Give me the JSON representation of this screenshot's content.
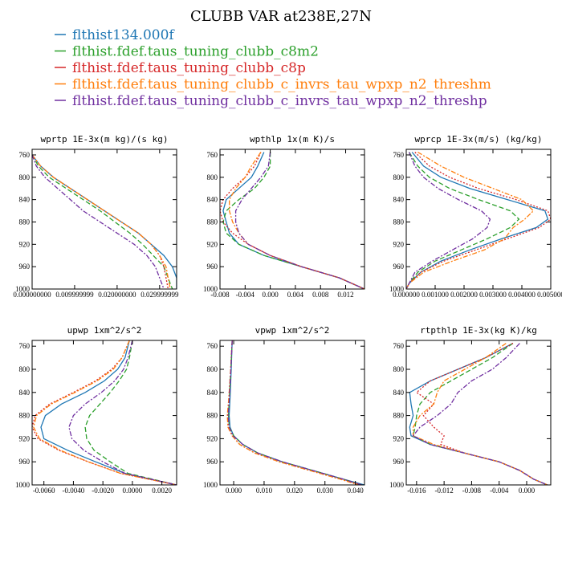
{
  "figure": {
    "title": "CLUBB VAR at238E,27N"
  },
  "chart_data": {
    "series_styles": [
      {
        "name": "flthist134.000f",
        "color": "#1f77b4",
        "dash": "solid"
      },
      {
        "name": "flthist.fdef.taus_tuning_clubb_c8m2",
        "color": "#2ca02c",
        "dash": "dashed"
      },
      {
        "name": "flthist.fdef.taus_tuning_clubb_c8p",
        "color": "#d62728",
        "dash": "dotted"
      },
      {
        "name": "flthist.fdef.taus_tuning_clubb_c_invrs_tau_wpxp_n2_threshm",
        "color": "#ff7f0e",
        "dash": "dashdot"
      },
      {
        "name": "flthist.fdef.taus_tuning_clubb_c_invrs_tau_wpxp_n2_threshp",
        "color": "#7030a0",
        "dash": "dashdot"
      }
    ],
    "panels": [
      {
        "type": "line",
        "title": "wprtp  1E-3x(m kg)/(s kg)",
        "xlim": [
          0.0,
          0.034
        ],
        "ylim": [
          750,
          1000
        ],
        "ylog": false,
        "y_inverted": true,
        "xticks": [
          0.0,
          0.01,
          0.02,
          0.03
        ],
        "xtick_labels": [
          "0.000000000",
          "0.009999999",
          "0.020000000",
          "0.029999999"
        ],
        "yticks": [
          760,
          800,
          840,
          880,
          920,
          960,
          1000
        ],
        "ytick_labels": [
          "760",
          "800",
          "840",
          "880",
          "920",
          "960",
          "1000"
        ],
        "y": [
          760,
          780,
          800,
          820,
          840,
          860,
          880,
          900,
          920,
          940,
          960,
          980,
          1000
        ],
        "series": [
          {
            "values": [
              0.0,
              0.002,
              0.005,
              0.009,
              0.013,
              0.017,
              0.021,
              0.025,
              0.028,
              0.031,
              0.033,
              0.034,
              0.034
            ]
          },
          {
            "values": [
              0.0,
              0.0015,
              0.004,
              0.008,
              0.012,
              0.016,
              0.0195,
              0.023,
              0.026,
              0.0285,
              0.031,
              0.032,
              0.033
            ]
          },
          {
            "values": [
              0.0,
              0.002,
              0.005,
              0.009,
              0.013,
              0.017,
              0.021,
              0.025,
              0.028,
              0.03,
              0.031,
              0.0315,
              0.032
            ]
          },
          {
            "values": [
              0.0,
              0.002,
              0.005,
              0.009,
              0.013,
              0.017,
              0.021,
              0.025,
              0.028,
              0.03,
              0.0315,
              0.032,
              0.0325
            ]
          },
          {
            "values": [
              0.0,
              0.001,
              0.003,
              0.006,
              0.009,
              0.012,
              0.016,
              0.02,
              0.024,
              0.027,
              0.029,
              0.03,
              0.031
            ]
          }
        ]
      },
      {
        "type": "line",
        "title": "wpthlp  1x(m K)/s",
        "xlim": [
          -0.008,
          0.015
        ],
        "ylim": [
          750,
          1000
        ],
        "ylog": false,
        "y_inverted": true,
        "xticks": [
          -0.008,
          -0.004,
          0.0,
          0.004,
          0.008,
          0.012
        ],
        "xtick_labels": [
          "-0.008",
          "-0.004",
          "0.000",
          "0.004",
          "0.008",
          "0.012"
        ],
        "yticks": [
          760,
          800,
          840,
          880,
          920,
          960,
          1000
        ],
        "ytick_labels": [
          "760",
          "800",
          "840",
          "880",
          "920",
          "960",
          "1000"
        ],
        "y": [
          755,
          780,
          800,
          820,
          840,
          860,
          880,
          900,
          920,
          940,
          960,
          980,
          1000
        ],
        "series": [
          {
            "values": [
              -0.001,
              -0.002,
              -0.003,
              -0.005,
              -0.007,
              -0.0075,
              -0.007,
              -0.0065,
              -0.005,
              -0.001,
              0.005,
              0.011,
              0.015
            ]
          },
          {
            "values": [
              0.0,
              0.0,
              -0.001,
              -0.0025,
              -0.005,
              -0.007,
              -0.0075,
              -0.007,
              -0.005,
              -0.001,
              0.005,
              0.011,
              0.015
            ]
          },
          {
            "values": [
              -0.0015,
              -0.0025,
              -0.004,
              -0.006,
              -0.0075,
              -0.008,
              -0.0075,
              -0.006,
              -0.0035,
              0.0,
              0.005,
              0.011,
              0.015
            ]
          },
          {
            "values": [
              -0.0015,
              -0.003,
              -0.004,
              -0.0055,
              -0.0065,
              -0.0065,
              -0.006,
              -0.005,
              -0.0035,
              0.0,
              0.005,
              0.011,
              0.015
            ]
          },
          {
            "values": [
              0.0,
              -0.0003,
              -0.0015,
              -0.003,
              -0.0045,
              -0.0055,
              -0.0055,
              -0.005,
              -0.0035,
              0.0,
              0.005,
              0.011,
              0.015
            ]
          }
        ]
      },
      {
        "type": "line",
        "title": "wprcp  1E-3x(m/s) (kg/kg)",
        "xlim": [
          0.0,
          0.005
        ],
        "ylim": [
          750,
          1000
        ],
        "ylog": false,
        "y_inverted": true,
        "xticks": [
          0.0,
          0.001,
          0.002,
          0.003,
          0.004,
          0.005
        ],
        "xtick_labels": [
          "0.000000",
          "0.001000",
          "0.002000",
          "0.003000",
          "0.004000",
          "0.005000"
        ],
        "yticks": [
          760,
          800,
          840,
          880,
          920,
          960,
          1000
        ],
        "ytick_labels": [
          "760",
          "800",
          "840",
          "880",
          "920",
          "960",
          "1000"
        ],
        "y": [
          755,
          780,
          800,
          820,
          840,
          860,
          875,
          890,
          910,
          930,
          950,
          970,
          990,
          1000
        ],
        "series": [
          {
            "values": [
              0.0002,
              0.0006,
              0.0012,
              0.0022,
              0.0035,
              0.0048,
              0.0049,
              0.0045,
              0.0033,
              0.0022,
              0.0012,
              0.0005,
              0.0001,
              0.0
            ]
          },
          {
            "values": [
              0.0001,
              0.0004,
              0.0008,
              0.0015,
              0.0025,
              0.0036,
              0.0039,
              0.0036,
              0.0028,
              0.0019,
              0.001,
              0.0004,
              0.0001,
              0.0
            ]
          },
          {
            "values": [
              0.0003,
              0.0008,
              0.0015,
              0.0025,
              0.0038,
              0.0049,
              0.005,
              0.0046,
              0.0035,
              0.0024,
              0.0013,
              0.0005,
              0.0001,
              0.0
            ]
          },
          {
            "values": [
              0.0004,
              0.0012,
              0.002,
              0.003,
              0.004,
              0.0044,
              0.0041,
              0.0037,
              0.0034,
              0.0027,
              0.0016,
              0.0006,
              0.0001,
              0.0
            ]
          },
          {
            "values": [
              0.0001,
              0.0003,
              0.0006,
              0.0011,
              0.0018,
              0.0026,
              0.0029,
              0.0028,
              0.0023,
              0.0016,
              0.0009,
              0.0003,
              0.0001,
              0.0
            ]
          }
        ]
      },
      {
        "type": "line",
        "title": "upwp  1xm^2/s^2",
        "xlim": [
          -0.0068,
          0.003
        ],
        "ylim": [
          750,
          1000
        ],
        "ylog": false,
        "y_inverted": true,
        "xticks": [
          -0.006,
          -0.004,
          -0.002,
          0.0,
          0.002
        ],
        "xtick_labels": [
          "-0.0060",
          "-0.0040",
          "-0.0020",
          "0.0000",
          "0.0020"
        ],
        "yticks": [
          760,
          800,
          840,
          880,
          920,
          960,
          1000
        ],
        "ytick_labels": [
          "760",
          "800",
          "840",
          "880",
          "920",
          "960",
          "1000"
        ],
        "y": [
          750,
          780,
          800,
          820,
          840,
          860,
          880,
          900,
          920,
          940,
          960,
          980,
          1000
        ],
        "series": [
          {
            "values": [
              -0.0002,
              -0.0005,
              -0.001,
              -0.0019,
              -0.0032,
              -0.0048,
              -0.0059,
              -0.0062,
              -0.006,
              -0.0044,
              -0.0025,
              -0.0005,
              0.003
            ]
          },
          {
            "values": [
              0.0,
              -0.0002,
              -0.0004,
              -0.0009,
              -0.0015,
              -0.0022,
              -0.0029,
              -0.0032,
              -0.0031,
              -0.0026,
              -0.0015,
              -0.0003,
              0.003
            ]
          },
          {
            "values": [
              -0.0002,
              -0.0007,
              -0.0014,
              -0.0025,
              -0.004,
              -0.0056,
              -0.0066,
              -0.0068,
              -0.0064,
              -0.005,
              -0.003,
              -0.0008,
              0.003
            ]
          },
          {
            "values": [
              -0.0002,
              -0.0007,
              -0.0013,
              -0.0024,
              -0.0039,
              -0.0055,
              -0.0065,
              -0.0067,
              -0.0063,
              -0.0049,
              -0.003,
              -0.0008,
              0.003
            ]
          },
          {
            "values": [
              0.0,
              -0.0003,
              -0.0006,
              -0.0012,
              -0.0021,
              -0.0032,
              -0.004,
              -0.0043,
              -0.0041,
              -0.0033,
              -0.002,
              -0.0005,
              0.003
            ]
          }
        ]
      },
      {
        "type": "line",
        "title": "vpwp  1xm^2/s^2",
        "xlim": [
          -0.0045,
          0.043
        ],
        "ylim": [
          750,
          1000
        ],
        "ylog": false,
        "y_inverted": true,
        "xticks": [
          0.0,
          0.01,
          0.02,
          0.03,
          0.04
        ],
        "xtick_labels": [
          "0.000",
          "0.010",
          "0.020",
          "0.030",
          "0.040"
        ],
        "yticks": [
          760,
          800,
          840,
          880,
          920,
          960,
          1000
        ],
        "ytick_labels": [
          "760",
          "800",
          "840",
          "880",
          "920",
          "960",
          "1000"
        ],
        "y": [
          750,
          800,
          850,
          880,
          900,
          915,
          930,
          945,
          960,
          975,
          990,
          1000
        ],
        "series": [
          {
            "values": [
              -0.0005,
              -0.0008,
              -0.0012,
              -0.0015,
              -0.0012,
              0.0,
              0.003,
              0.008,
              0.016,
              0.026,
              0.036,
              0.043
            ]
          },
          {
            "values": [
              -0.0005,
              -0.0009,
              -0.0014,
              -0.0017,
              -0.0014,
              0.0,
              0.003,
              0.008,
              0.016,
              0.026,
              0.036,
              0.042
            ]
          },
          {
            "values": [
              -0.0005,
              -0.001,
              -0.0016,
              -0.002,
              -0.0018,
              -0.0005,
              0.002,
              0.007,
              0.015,
              0.025,
              0.035,
              0.042
            ]
          },
          {
            "values": [
              -0.0005,
              -0.001,
              -0.0016,
              -0.0021,
              -0.0019,
              -0.0005,
              0.002,
              0.007,
              0.015,
              0.025,
              0.035,
              0.041
            ]
          },
          {
            "values": [
              -0.0005,
              -0.0009,
              -0.0014,
              -0.0018,
              -0.0015,
              -0.0002,
              0.003,
              0.008,
              0.016,
              0.026,
              0.036,
              0.042
            ]
          }
        ]
      },
      {
        "type": "line",
        "title": "rtpthlp  1E-3x(kg K)/kg",
        "xlim": [
          -0.0175,
          0.0035
        ],
        "ylim": [
          750,
          1000
        ],
        "ylog": false,
        "y_inverted": true,
        "xticks": [
          -0.016,
          -0.012,
          -0.008,
          -0.004,
          0.0
        ],
        "xtick_labels": [
          "-0.016",
          "-0.012",
          "-0.008",
          "-0.004",
          "0.000"
        ],
        "yticks": [
          760,
          800,
          840,
          880,
          920,
          960,
          1000
        ],
        "ytick_labels": [
          "760",
          "800",
          "840",
          "880",
          "920",
          "960",
          "1000"
        ],
        "y": [
          755,
          780,
          800,
          820,
          840,
          860,
          880,
          900,
          915,
          930,
          945,
          960,
          975,
          990,
          1000
        ],
        "series": [
          {
            "values": [
              -0.002,
              -0.006,
              -0.01,
              -0.014,
              -0.017,
              -0.0168,
              -0.0165,
              -0.017,
              -0.0168,
              -0.014,
              -0.009,
              -0.004,
              -0.001,
              0.001,
              0.003
            ]
          },
          {
            "values": [
              -0.002,
              -0.005,
              -0.008,
              -0.011,
              -0.014,
              -0.0155,
              -0.016,
              -0.0162,
              -0.0165,
              -0.014,
              -0.009,
              -0.004,
              -0.001,
              0.001,
              0.003
            ]
          },
          {
            "values": [
              -0.002,
              -0.006,
              -0.01,
              -0.014,
              -0.016,
              -0.0135,
              -0.015,
              -0.0135,
              -0.012,
              -0.0125,
              -0.009,
              -0.004,
              -0.001,
              0.001,
              0.003
            ]
          },
          {
            "values": [
              -0.003,
              -0.006,
              -0.009,
              -0.012,
              -0.013,
              -0.0135,
              -0.0155,
              -0.0165,
              -0.0165,
              -0.0135,
              -0.009,
              -0.004,
              -0.001,
              0.001,
              0.003
            ]
          },
          {
            "values": [
              -0.001,
              -0.003,
              -0.005,
              -0.008,
              -0.01,
              -0.011,
              -0.013,
              -0.0155,
              -0.0165,
              -0.014,
              -0.009,
              -0.004,
              -0.001,
              0.001,
              0.003
            ]
          }
        ]
      }
    ]
  }
}
